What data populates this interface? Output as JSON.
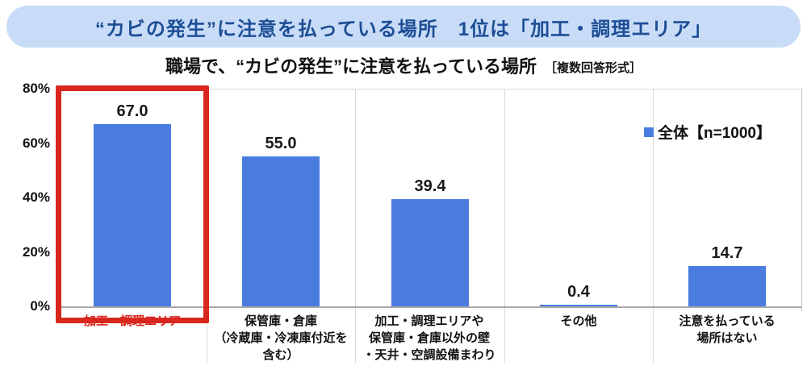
{
  "banner": {
    "title": "“カビの発生”に注意を払っている場所　1位は「加工・調理エリア」",
    "bg_color": "#c9dcf7",
    "text_color": "#1d4e96"
  },
  "chart_title": {
    "main": "職場で、“カビの発生”に注意を払っている場所",
    "note": "［複数回答形式］"
  },
  "legend": {
    "label": "全体【n=1000】"
  },
  "chart_data": {
    "type": "bar",
    "title": "職場で、“カビの発生”に注意を払っている場所［複数回答形式］",
    "series_name": "全体【n=1000】",
    "categories": [
      "加工・調理エリア",
      "保管庫・倉庫\n（冷蔵庫・冷凍庫付近を\n含む）",
      "加工・調理エリアや\n保管庫・倉庫以外の壁\n・天井・空調設備まわり",
      "その他",
      "注意を払っている\n場所はない"
    ],
    "values": [
      67.0,
      55.0,
      39.4,
      0.4,
      14.7
    ],
    "value_labels": [
      "67.0",
      "55.0",
      "39.4",
      "0.4",
      "14.7"
    ],
    "ytick_labels": [
      "0%",
      "20%",
      "40%",
      "60%",
      "80%"
    ],
    "ylim": [
      0,
      80
    ],
    "unit": "%",
    "bar_color": "#4a7ce0",
    "highlight_index": 0,
    "highlight_color": "#d8271e",
    "grid": "top border, right border and vertical category separators only",
    "legend_position": "top-right inside plot"
  }
}
